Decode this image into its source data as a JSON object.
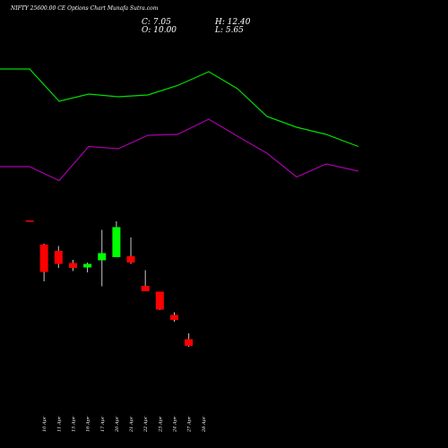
{
  "header": {
    "title": "NIFTY 25600.00 CE Options Chart Munafa Sutra.com",
    "close_text": "C: 7.05",
    "open_text": "O: 10.00",
    "high_text": "H: 12.40",
    "low_text": "L: 5.65"
  },
  "colors": {
    "background": "#000000",
    "up": "#00ff00",
    "down": "#ff0000",
    "wick": "#c8c8c8",
    "upper_line": "#00dd00",
    "lower_line": "#aa00aa",
    "label": "#ffffff"
  },
  "chart_data": {
    "type": "candlestick",
    "categories": [
      "10 Apr",
      "11 Apr",
      "15 Apr",
      "16 Apr",
      "17 Apr",
      "20 Apr",
      "21 Apr",
      "22 Apr",
      "23 Apr",
      "24 Apr",
      "27 Apr",
      "28 Apr"
    ],
    "candles": [
      {
        "date": "",
        "open": 50.8,
        "high": 50.8,
        "low": 50.6,
        "close": 50.6
      },
      {
        "date": "10 Apr",
        "open": 45.4,
        "high": 45.6,
        "low": 37.2,
        "close": 39.3
      },
      {
        "date": "11 Apr",
        "open": 44.0,
        "high": 45.1,
        "low": 40.2,
        "close": 41.1
      },
      {
        "date": "15 Apr",
        "open": 41.3,
        "high": 42.0,
        "low": 39.5,
        "close": 40.2
      },
      {
        "date": "16 Apr",
        "open": 40.3,
        "high": 41.4,
        "low": 39.2,
        "close": 41.1
      },
      {
        "date": "17 Apr",
        "open": 41.9,
        "high": 48.7,
        "low": 36.1,
        "close": 43.5
      },
      {
        "date": "20 Apr",
        "open": 42.6,
        "high": 50.6,
        "low": 42.6,
        "close": 49.3
      },
      {
        "date": "21 Apr",
        "open": 42.8,
        "high": 47.0,
        "low": 41.1,
        "close": 41.4
      },
      {
        "date": "22 Apr",
        "open": 36.2,
        "high": 39.7,
        "low": 35.0,
        "close": 35.0
      },
      {
        "date": "23 Apr",
        "open": 34.9,
        "high": 34.9,
        "low": 30.8,
        "close": 30.9
      },
      {
        "date": "24 Apr",
        "open": 29.7,
        "high": 30.3,
        "low": 28.2,
        "close": 28.6
      },
      {
        "date": "27 Apr",
        "open": 24.3,
        "high": 25.6,
        "low": 22.6,
        "close": 22.8
      }
    ],
    "upper_band": [
      84.6,
      84.6,
      77.4,
      79.0,
      78.4,
      78.8,
      80.9,
      84.0,
      80.2,
      74.0,
      71.6,
      70.0,
      67.3
    ],
    "lower_band": [
      62.8,
      62.8,
      59.7,
      67.3,
      66.8,
      69.8,
      70.0,
      73.4,
      69.6,
      65.8,
      60.5,
      63.4,
      61.8
    ],
    "y_range": [
      0,
      100
    ]
  }
}
